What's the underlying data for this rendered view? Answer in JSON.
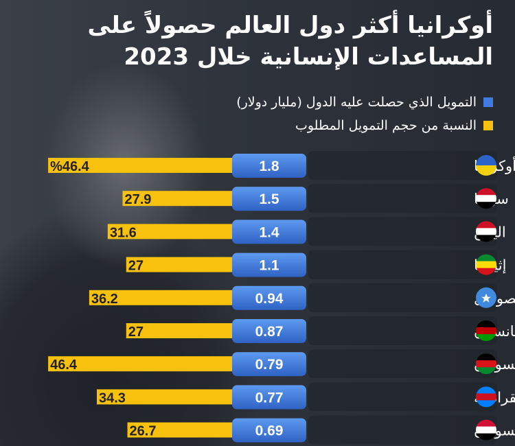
{
  "title": {
    "line1": "أوكرانيا أكثر دول العالم حصولاً على",
    "line2": "المساعدات الإنسانية خلال 2023"
  },
  "legend": [
    {
      "label": "التمويل الذي حصلت عليه الدول (مليار دولار)",
      "color": "#3f7be0"
    },
    {
      "label": "النسبة من حجم التمويل المطلوب",
      "color": "#f7c10d"
    }
  ],
  "chart_data": {
    "type": "bar",
    "title": "أوكرانيا أكثر دول العالم حصولاً على المساعدات الإنسانية خلال 2023",
    "categories": [
      "أوكرانيا",
      "سوريا",
      "اليمن",
      "إثيوبيا",
      "الصومال",
      "أفغانستان",
      "جنوب السودان",
      "الكونغو الديمقراطية",
      "السودان"
    ],
    "series": [
      {
        "name": "التمويل الذي حصلت عليه الدول (مليار دولار)",
        "values": [
          1.8,
          1.5,
          1.4,
          1.1,
          0.94,
          0.87,
          0.79,
          0.77,
          0.69
        ],
        "labels": [
          "1.8",
          "1.5",
          "1.4",
          "1.1",
          "0.94",
          "0.87",
          "0.79",
          "0.77",
          "0.69"
        ]
      },
      {
        "name": "النسبة من حجم التمويل المطلوب",
        "values": [
          46.4,
          27.9,
          31.6,
          27,
          36.2,
          27,
          46.4,
          34.3,
          26.7
        ],
        "labels": [
          "%46.4",
          "27.9",
          "31.6",
          "27",
          "36.2",
          "27",
          "46.4",
          "34.3",
          "26.7"
        ]
      }
    ],
    "flags": [
      [
        "#2b63c8",
        "#f5d10c"
      ],
      [
        "#ce1126",
        "#ffffff",
        "#000000"
      ],
      [
        "#ce1126",
        "#ffffff",
        "#000000"
      ],
      [
        "#078930",
        "#fcdd09",
        "#da121a"
      ],
      [
        "#4189dd"
      ],
      [
        "#000000",
        "#be0000",
        "#009900"
      ],
      [
        "#000000",
        "#da121a",
        "#078930"
      ],
      [
        "#007fff",
        "#ce1021",
        "#007fff"
      ],
      [
        "#d21034",
        "#ffffff",
        "#000000"
      ]
    ]
  }
}
